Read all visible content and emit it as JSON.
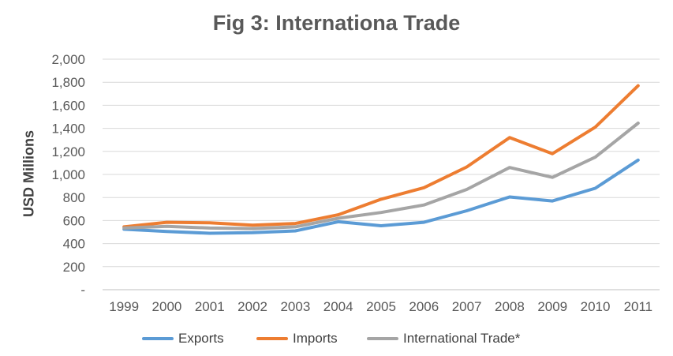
{
  "chart_data": {
    "type": "line",
    "title": "Fig 3: Internationa Trade",
    "xlabel": "",
    "ylabel": "USD Millions",
    "ylim": [
      0,
      2000
    ],
    "y_ticks": [
      "-",
      "200",
      "400",
      "600",
      "800",
      "1,000",
      "1,200",
      "1,400",
      "1,600",
      "1,800",
      "2,000"
    ],
    "grid": true,
    "legend_position": "bottom",
    "categories": [
      "1999",
      "2000",
      "2001",
      "2002",
      "2003",
      "2004",
      "2005",
      "2006",
      "2007",
      "2008",
      "2009",
      "2010",
      "2011"
    ],
    "series": [
      {
        "name": "Exports",
        "color": "#5B9BD5",
        "values": [
          525,
          505,
          490,
          495,
          510,
          590,
          555,
          585,
          685,
          805,
          770,
          880,
          1125
        ]
      },
      {
        "name": "Imports",
        "color": "#ED7D31",
        "values": [
          545,
          585,
          580,
          560,
          575,
          650,
          785,
          885,
          1065,
          1320,
          1180,
          1410,
          1770
        ]
      },
      {
        "name": "International Trade*",
        "color": "#A5A5A5",
        "values": [
          535,
          550,
          535,
          530,
          545,
          620,
          670,
          735,
          870,
          1060,
          975,
          1150,
          1445
        ]
      }
    ]
  }
}
